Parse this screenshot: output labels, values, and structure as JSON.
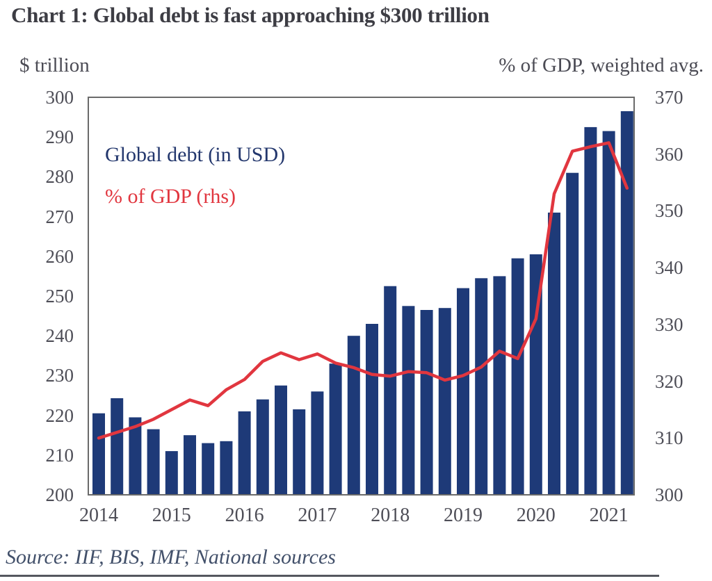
{
  "title": "Chart 1: Global debt is fast approaching $300 trillion",
  "left_axis": {
    "unit": "$ trillion",
    "ticks": [
      300,
      290,
      280,
      270,
      260,
      250,
      240,
      230,
      220,
      210,
      200
    ]
  },
  "right_axis": {
    "unit": "% of GDP, weighted avg.",
    "ticks": [
      370,
      360,
      350,
      340,
      330,
      320,
      310,
      300
    ]
  },
  "legend": [
    {
      "label": "Global debt (in USD)",
      "color": "#1e3a78"
    },
    {
      "label": "% of GDP (rhs)",
      "color": "#e1363f"
    }
  ],
  "source": "Source: IIF, BIS, IMF, National sources",
  "colors": {
    "bar": "#1e3a78",
    "line": "#e1363f",
    "frame": "#6a6a6a",
    "title_text": "#3d3d44",
    "axis_text": "#4e4e57",
    "source_text": "#42506a"
  },
  "chart_data": {
    "type": "bar",
    "subtype": "bar-and-line-dual-axis",
    "title": "Chart 1: Global debt is fast approaching $300 trillion",
    "xlabel": "",
    "ylabel_left": "$ trillion",
    "ylabel_right": "% of GDP, weighted avg.",
    "left_range": [
      200,
      300
    ],
    "right_range": [
      300,
      370
    ],
    "grid": false,
    "legend_position": "inside-top-left",
    "year_labels": [
      "2014",
      "2015",
      "2016",
      "2017",
      "2018",
      "2019",
      "2020",
      "2021"
    ],
    "x": [
      "2014 Q1",
      "2014 Q2",
      "2014 Q3",
      "2014 Q4",
      "2015 Q1",
      "2015 Q2",
      "2015 Q3",
      "2015 Q4",
      "2016 Q1",
      "2016 Q2",
      "2016 Q3",
      "2016 Q4",
      "2017 Q1",
      "2017 Q2",
      "2017 Q3",
      "2017 Q4",
      "2018 Q1",
      "2018 Q2",
      "2018 Q3",
      "2018 Q4",
      "2019 Q1",
      "2019 Q2",
      "2019 Q3",
      "2019 Q4",
      "2020 Q1",
      "2020 Q2",
      "2020 Q3",
      "2020 Q4",
      "2021 Q1",
      "2021 Q2"
    ],
    "series": [
      {
        "name": "Global debt (in USD)",
        "type": "bar",
        "axis": "left",
        "color": "#1e3a78",
        "values": [
          220.5,
          224.3,
          219.5,
          216.5,
          211,
          215,
          213,
          213.5,
          221,
          224,
          227.5,
          221.5,
          226,
          233,
          240,
          243,
          252.5,
          247.5,
          246.5,
          247,
          252,
          254.5,
          255,
          259.5,
          260.5,
          271,
          281,
          292.5,
          291.5,
          296.5
        ]
      },
      {
        "name": "% of GDP (rhs)",
        "type": "line",
        "axis": "right",
        "color": "#e1363f",
        "values": [
          310,
          311,
          312,
          313.3,
          315,
          316.7,
          315.7,
          318.5,
          320.3,
          323.5,
          325,
          323.8,
          324.8,
          323.2,
          322.4,
          321.2,
          320.9,
          321.7,
          321.5,
          320.2,
          321,
          322.5,
          325.3,
          324,
          331,
          353,
          360.5,
          361.3,
          362,
          354
        ]
      }
    ]
  }
}
